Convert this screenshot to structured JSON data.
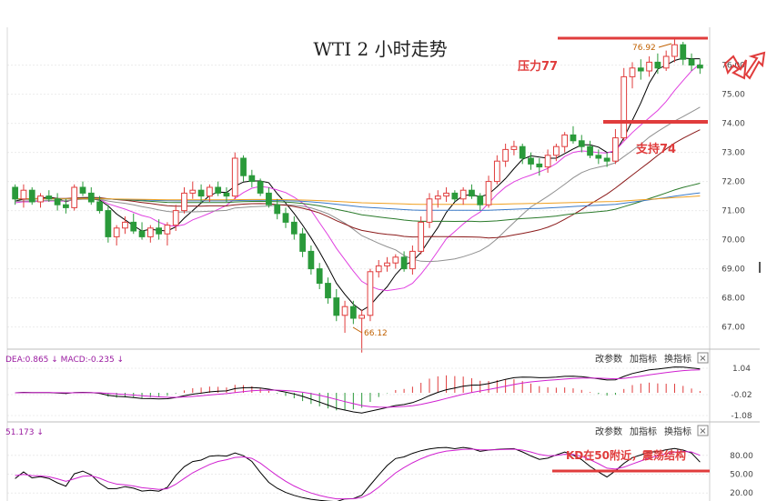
{
  "chart_data": [
    {
      "type": "candlestick",
      "title": "WTI 2 小时走势",
      "y_axis": {
        "ticks": [
          "76.00",
          "75.00",
          "74.00",
          "73.00",
          "72.00",
          "71.00",
          "70.00",
          "69.00",
          "68.00",
          "67.00"
        ],
        "range": [
          66.3,
          77.3
        ]
      },
      "annotations": {
        "resistance_label": "压力77",
        "resistance_level": 77,
        "support_label": "支持74",
        "support_level": 74,
        "high_label": "76.92",
        "low_label": "66.12"
      },
      "candles_ohlc": [
        [
          71.8,
          71.9,
          71.2,
          71.4
        ],
        [
          71.4,
          71.9,
          71.1,
          71.7
        ],
        [
          71.7,
          71.8,
          71.2,
          71.3
        ],
        [
          71.3,
          71.6,
          71.1,
          71.5
        ],
        [
          71.5,
          71.7,
          71.3,
          71.4
        ],
        [
          71.4,
          71.6,
          71.0,
          71.2
        ],
        [
          71.2,
          71.4,
          70.9,
          71.1
        ],
        [
          71.1,
          71.9,
          71.0,
          71.8
        ],
        [
          71.8,
          72.0,
          71.5,
          71.6
        ],
        [
          71.6,
          71.8,
          71.2,
          71.3
        ],
        [
          71.3,
          71.5,
          70.9,
          71.0
        ],
        [
          71.0,
          71.2,
          69.9,
          70.1
        ],
        [
          70.1,
          70.5,
          69.8,
          70.4
        ],
        [
          70.4,
          70.8,
          70.2,
          70.6
        ],
        [
          70.6,
          70.9,
          70.2,
          70.3
        ],
        [
          70.3,
          70.6,
          70.0,
          70.1
        ],
        [
          70.1,
          70.5,
          69.9,
          70.4
        ],
        [
          70.4,
          70.7,
          70.0,
          70.2
        ],
        [
          70.2,
          70.6,
          69.8,
          70.5
        ],
        [
          70.5,
          71.2,
          70.3,
          71.0
        ],
        [
          71.0,
          71.8,
          70.9,
          71.6
        ],
        [
          71.6,
          72.0,
          71.4,
          71.7
        ],
        [
          71.7,
          71.9,
          71.3,
          71.5
        ],
        [
          71.5,
          71.9,
          71.3,
          71.8
        ],
        [
          71.8,
          72.0,
          71.5,
          71.6
        ],
        [
          71.6,
          71.8,
          71.3,
          71.5
        ],
        [
          71.5,
          73.0,
          71.4,
          72.8
        ],
        [
          72.8,
          72.9,
          72.0,
          72.2
        ],
        [
          72.2,
          72.4,
          71.8,
          72.0
        ],
        [
          72.0,
          72.1,
          71.5,
          71.6
        ],
        [
          71.6,
          71.8,
          71.1,
          71.2
        ],
        [
          71.2,
          71.4,
          70.7,
          70.9
        ],
        [
          70.9,
          71.1,
          70.4,
          70.6
        ],
        [
          70.6,
          70.8,
          70.0,
          70.2
        ],
        [
          70.2,
          70.4,
          69.4,
          69.6
        ],
        [
          69.6,
          69.8,
          68.8,
          69.0
        ],
        [
          69.0,
          69.2,
          68.3,
          68.5
        ],
        [
          68.5,
          68.7,
          67.8,
          68.0
        ],
        [
          68.0,
          68.3,
          67.2,
          67.4
        ],
        [
          67.4,
          67.9,
          66.8,
          67.7
        ],
        [
          67.7,
          67.9,
          67.1,
          67.3
        ],
        [
          67.3,
          67.6,
          66.12,
          67.4
        ],
        [
          67.4,
          69.0,
          67.2,
          68.9
        ],
        [
          68.9,
          69.3,
          68.7,
          69.1
        ],
        [
          69.1,
          69.4,
          68.9,
          69.2
        ],
        [
          69.2,
          69.5,
          69.0,
          69.4
        ],
        [
          69.4,
          69.6,
          68.9,
          69.0
        ],
        [
          69.0,
          69.8,
          68.8,
          69.6
        ],
        [
          69.6,
          70.8,
          69.5,
          70.6
        ],
        [
          70.6,
          71.6,
          70.4,
          71.4
        ],
        [
          71.4,
          71.7,
          71.1,
          71.5
        ],
        [
          71.5,
          71.8,
          71.3,
          71.6
        ],
        [
          71.6,
          71.7,
          71.3,
          71.4
        ],
        [
          71.4,
          71.8,
          71.2,
          71.7
        ],
        [
          71.7,
          71.9,
          71.4,
          71.5
        ],
        [
          71.5,
          71.6,
          71.0,
          71.2
        ],
        [
          71.2,
          72.2,
          71.1,
          72.0
        ],
        [
          72.0,
          72.9,
          71.9,
          72.7
        ],
        [
          72.7,
          73.3,
          72.5,
          73.1
        ],
        [
          73.1,
          73.4,
          72.9,
          73.2
        ],
        [
          73.2,
          73.3,
          72.6,
          72.8
        ],
        [
          72.8,
          73.0,
          72.4,
          72.6
        ],
        [
          72.6,
          72.8,
          72.2,
          72.5
        ],
        [
          72.5,
          73.1,
          72.3,
          72.9
        ],
        [
          72.9,
          73.3,
          72.7,
          73.2
        ],
        [
          73.2,
          73.7,
          73.0,
          73.6
        ],
        [
          73.6,
          73.9,
          73.3,
          73.4
        ],
        [
          73.4,
          73.6,
          73.0,
          73.2
        ],
        [
          73.2,
          73.4,
          72.8,
          72.9
        ],
        [
          72.9,
          73.1,
          72.6,
          72.8
        ],
        [
          72.8,
          73.0,
          72.5,
          72.7
        ],
        [
          72.7,
          73.8,
          72.6,
          73.5
        ],
        [
          73.5,
          75.9,
          73.4,
          75.6
        ],
        [
          75.6,
          76.1,
          75.2,
          75.9
        ],
        [
          75.9,
          76.2,
          75.5,
          75.8
        ],
        [
          75.8,
          76.3,
          75.6,
          76.1
        ],
        [
          76.1,
          76.4,
          75.7,
          75.9
        ],
        [
          75.9,
          76.5,
          75.8,
          76.3
        ],
        [
          76.3,
          76.92,
          76.1,
          76.7
        ],
        [
          76.7,
          76.8,
          76.0,
          76.2
        ],
        [
          76.2,
          76.4,
          75.8,
          76.0
        ],
        [
          76.0,
          76.2,
          75.7,
          75.9
        ]
      ]
    },
    {
      "type": "macd",
      "header": "DEA:0.865 ↓ MACD:-0.235 ↓",
      "y_axis": {
        "ticks": [
          "1.04",
          "-0.02",
          "-1.08"
        ]
      }
    },
    {
      "type": "kd",
      "header": "51.173 ↓",
      "y_axis": {
        "ticks": [
          "80.00",
          "50.00",
          "20.00"
        ]
      },
      "annotation": "KD在50附近，震荡结构"
    }
  ],
  "toolbar_macd": {
    "btn1": "改参数",
    "btn2": "加指标",
    "btn3": "换指标",
    "close": "×"
  },
  "toolbar_kd": {
    "btn1": "改参数",
    "btn2": "加指标",
    "btn3": "换指标",
    "close": "×"
  },
  "colors": {
    "up": "#e03c3c",
    "down": "#2a9a3a",
    "ma5": "#000000",
    "ma10": "#e040e0",
    "ma20": "#909090",
    "ma30": "#8b1a1a",
    "ma60": "#2a7a2a",
    "ma120": "#3a7ac8",
    "ma250": "#f0a020",
    "annotation": "#e03c3c"
  }
}
